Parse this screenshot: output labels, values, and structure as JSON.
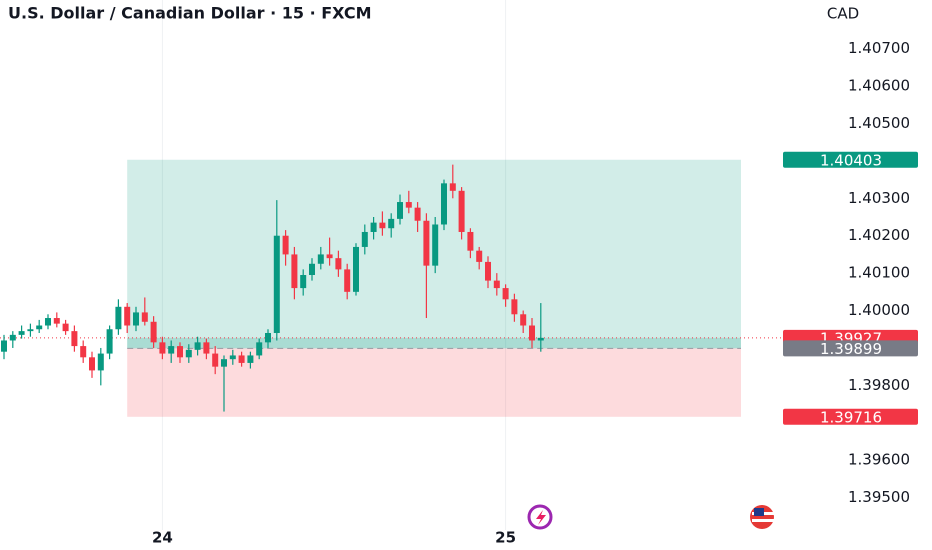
{
  "chart_data": {
    "type": "candlestick",
    "title": "U.S. Dollar / Canadian Dollar · 15 · FXCM",
    "y_label": "CAD",
    "up_color": "#089981",
    "down_color": "#f23645",
    "categories": [
      null,
      null,
      null,
      null,
      null,
      null,
      null,
      null,
      null,
      null,
      null,
      null,
      null,
      null,
      null,
      null,
      null,
      null,
      "24",
      null,
      null,
      null,
      null,
      null,
      null,
      null,
      null,
      null,
      null,
      null,
      null,
      null,
      null,
      null,
      null,
      null,
      null,
      null,
      null,
      null,
      null,
      null,
      null,
      null,
      null,
      null,
      null,
      null,
      null,
      null,
      null,
      null,
      null,
      null,
      null,
      null,
      null,
      "25",
      null,
      null,
      null,
      null
    ],
    "open": [
      1.3989,
      1.3992,
      1.39935,
      1.39945,
      1.3995,
      1.3996,
      1.3998,
      1.39965,
      1.39945,
      1.39905,
      1.39875,
      1.3984,
      1.39885,
      1.3995,
      1.4001,
      1.3996,
      1.39995,
      1.3997,
      1.39915,
      1.39885,
      1.39905,
      1.39875,
      1.39895,
      1.39915,
      1.39885,
      1.3985,
      1.3987,
      1.3988,
      1.3986,
      1.3988,
      1.39915,
      1.3994,
      1.402,
      1.4015,
      1.4006,
      1.40095,
      1.40125,
      1.4015,
      1.4014,
      1.4011,
      1.4005,
      1.4017,
      1.4021,
      1.40235,
      1.4022,
      1.40245,
      1.4029,
      1.40275,
      1.4024,
      1.4012,
      1.4023,
      1.4034,
      1.4032,
      1.4021,
      1.4016,
      1.4013,
      1.4008,
      1.4006,
      1.4003,
      1.3999,
      1.3996,
      1.3992
    ],
    "high": [
      1.39935,
      1.39945,
      1.3996,
      1.39965,
      1.39975,
      1.3999,
      1.39995,
      1.39975,
      1.3996,
      1.3992,
      1.3989,
      1.399,
      1.3996,
      1.4003,
      1.4002,
      1.4001,
      1.40035,
      1.39985,
      1.3993,
      1.3992,
      1.39915,
      1.3991,
      1.3993,
      1.39925,
      1.39905,
      1.3988,
      1.39895,
      1.3989,
      1.3989,
      1.39925,
      1.3995,
      1.40295,
      1.40215,
      1.4017,
      1.4011,
      1.4014,
      1.4017,
      1.40195,
      1.4016,
      1.40125,
      1.4018,
      1.4023,
      1.4025,
      1.40265,
      1.4026,
      1.4031,
      1.4032,
      1.4029,
      1.4026,
      1.4025,
      1.4035,
      1.4039,
      1.4033,
      1.4022,
      1.4017,
      1.40145,
      1.401,
      1.4007,
      1.40045,
      1.4,
      1.3998,
      1.4002
    ],
    "low": [
      1.3987,
      1.399,
      1.39925,
      1.3993,
      1.3994,
      1.3995,
      1.39955,
      1.39935,
      1.3989,
      1.3986,
      1.3982,
      1.398,
      1.3987,
      1.39935,
      1.3994,
      1.39945,
      1.3996,
      1.399,
      1.3987,
      1.3986,
      1.3986,
      1.3986,
      1.3988,
      1.3987,
      1.3983,
      1.3973,
      1.39855,
      1.3985,
      1.39845,
      1.3987,
      1.399,
      1.3992,
      1.4012,
      1.4003,
      1.4004,
      1.4008,
      1.4011,
      1.4012,
      1.4009,
      1.4003,
      1.4004,
      1.4015,
      1.4019,
      1.402,
      1.40195,
      1.4023,
      1.4026,
      1.4021,
      1.3998,
      1.401,
      1.40215,
      1.403,
      1.4019,
      1.4014,
      1.4011,
      1.4006,
      1.4004,
      1.4001,
      1.3997,
      1.3994,
      1.399,
      1.3989
    ],
    "close": [
      1.3992,
      1.39935,
      1.39945,
      1.3995,
      1.3996,
      1.3998,
      1.39965,
      1.39945,
      1.39905,
      1.39875,
      1.3984,
      1.39885,
      1.3995,
      1.4001,
      1.3996,
      1.39995,
      1.3997,
      1.39915,
      1.39885,
      1.39905,
      1.39875,
      1.39895,
      1.39915,
      1.39885,
      1.3985,
      1.3987,
      1.3988,
      1.3986,
      1.3988,
      1.39915,
      1.3994,
      1.402,
      1.4015,
      1.4006,
      1.40095,
      1.40125,
      1.4015,
      1.4014,
      1.4011,
      1.4005,
      1.4017,
      1.4021,
      1.40235,
      1.4022,
      1.40245,
      1.4029,
      1.40275,
      1.4024,
      1.4012,
      1.4023,
      1.4034,
      1.4032,
      1.4021,
      1.4016,
      1.4013,
      1.4008,
      1.4006,
      1.4003,
      1.3999,
      1.3996,
      1.3992,
      1.39927
    ],
    "ylim": [
      1.3936,
      1.4083
    ],
    "yticks": [
      {
        "value": 1.395,
        "label": "1.39500"
      },
      {
        "value": 1.396,
        "label": "1.39600"
      },
      {
        "value": 1.398,
        "label": "1.39800"
      },
      {
        "value": 1.4,
        "label": "1.40000"
      },
      {
        "value": 1.401,
        "label": "1.40100"
      },
      {
        "value": 1.402,
        "label": "1.40200"
      },
      {
        "value": 1.403,
        "label": "1.40300"
      },
      {
        "value": 1.405,
        "label": "1.40500"
      },
      {
        "value": 1.406,
        "label": "1.40600"
      },
      {
        "value": 1.407,
        "label": "1.40700"
      }
    ],
    "last_price": 1.39927,
    "position": {
      "take_profit": 1.40403,
      "entry": 1.39899,
      "stop_loss": 1.39716
    }
  }
}
